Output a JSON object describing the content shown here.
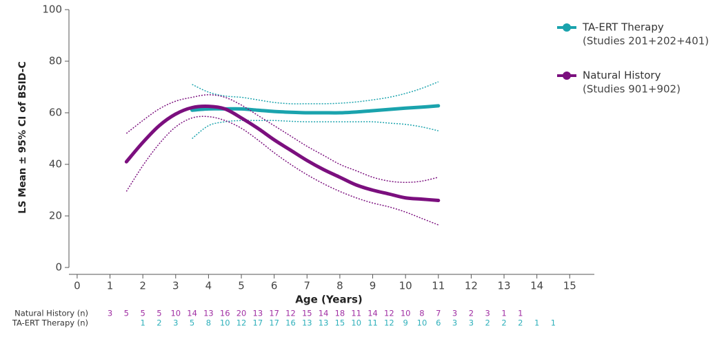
{
  "chart_data": {
    "type": "line",
    "x_label": "Age (Years)",
    "y_label": "LS Mean ± 95% CI of BSID-C",
    "xlim": [
      -0.25,
      15.75
    ],
    "xticks": [
      0,
      1,
      2,
      3,
      4,
      5,
      6,
      7,
      8,
      9,
      10,
      11,
      12,
      13,
      14,
      15
    ],
    "ylim": [
      0,
      100
    ],
    "yticks": [
      0,
      20,
      40,
      60,
      80,
      100
    ],
    "series": [
      {
        "name": "TA-ERT Therapy",
        "studies": "(Studies 201+202+401)",
        "color": "#1aa3ad",
        "x": [
          3.5,
          4,
          4.5,
          5,
          5.5,
          6,
          6.5,
          7,
          7.5,
          8,
          8.5,
          9,
          9.5,
          10,
          10.5,
          11
        ],
        "values": [
          61,
          61.5,
          61.5,
          61.5,
          61,
          60.5,
          60.2,
          60,
          60,
          60,
          60.3,
          60.8,
          61.3,
          61.8,
          62.2,
          62.7
        ],
        "ci_upper": [
          71,
          68,
          66.5,
          66,
          65,
          64,
          63.5,
          63.5,
          63.5,
          63.7,
          64.2,
          65,
          66,
          67.5,
          69.5,
          72
        ],
        "ci_lower": [
          50,
          55,
          56.5,
          57,
          57,
          57,
          56.7,
          56.5,
          56.5,
          56.5,
          56.5,
          56.5,
          56,
          55.5,
          54.5,
          53
        ]
      },
      {
        "name": "Natural History",
        "studies": "(Studies 901+902)",
        "color": "#7b0f7e",
        "x": [
          1.5,
          2,
          2.5,
          3,
          3.5,
          4,
          4.5,
          5,
          5.5,
          6,
          6.5,
          7,
          7.5,
          8,
          8.5,
          9,
          9.5,
          10,
          10.5,
          11
        ],
        "values": [
          41,
          48.5,
          55,
          59.5,
          62,
          62.5,
          61.5,
          58,
          54,
          49.5,
          45.5,
          41.5,
          38,
          35,
          32,
          30,
          28.5,
          27,
          26.5,
          26
        ],
        "ci_upper": [
          52,
          57,
          61.5,
          64.5,
          66,
          67,
          66,
          63,
          59,
          55,
          51,
          47,
          43.5,
          40,
          37.5,
          35,
          33.5,
          33,
          33.5,
          35
        ],
        "ci_lower": [
          29.5,
          39.5,
          48,
          54.5,
          58,
          58.5,
          57,
          54,
          49.5,
          44.5,
          40,
          36,
          32.5,
          29.5,
          27,
          25,
          23.5,
          21.5,
          19,
          16.5
        ]
      }
    ],
    "n_table": [
      {
        "label": "Natural History (n)",
        "color": "#a02fa3",
        "x": [
          1,
          1.5,
          2,
          2.5,
          3,
          3.5,
          4,
          4.5,
          5,
          5.5,
          6,
          6.5,
          7,
          7.5,
          8,
          8.5,
          9,
          9.5,
          10,
          10.5,
          11,
          11.5,
          12,
          12.5,
          13,
          13.5
        ],
        "values": [
          3,
          5,
          5,
          5,
          10,
          14,
          13,
          16,
          20,
          13,
          17,
          12,
          15,
          14,
          18,
          11,
          14,
          12,
          10,
          8,
          7,
          3,
          2,
          3,
          1,
          1
        ]
      },
      {
        "label": "TA-ERT Therapy (n)",
        "color": "#2fb0bb",
        "x": [
          2,
          2.5,
          3,
          3.5,
          4,
          4.5,
          5,
          5.5,
          6,
          6.5,
          7,
          7.5,
          8,
          8.5,
          9,
          9.5,
          10,
          10.5,
          11,
          11.5,
          12,
          12.5,
          13,
          13.5,
          14,
          14.5
        ],
        "values": [
          1,
          2,
          3,
          5,
          8,
          10,
          12,
          17,
          17,
          16,
          13,
          13,
          15,
          10,
          11,
          12,
          9,
          10,
          6,
          3,
          3,
          2,
          2,
          2,
          1,
          1
        ]
      }
    ]
  }
}
